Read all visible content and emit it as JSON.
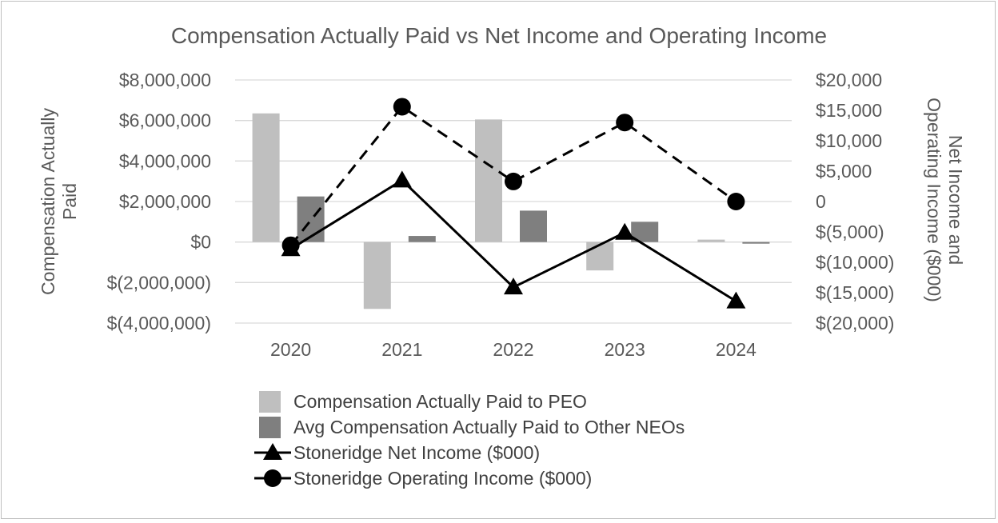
{
  "chart_data": {
    "type": "bar",
    "title": "Compensation Actually Paid vs Net Income and Operating Income",
    "categories": [
      "2020",
      "2021",
      "2022",
      "2023",
      "2024"
    ],
    "y_left": {
      "label_lines": [
        "Compensation Actually",
        "Paid"
      ],
      "range": [
        -4000000,
        8000000
      ],
      "ticks": [
        8000000,
        6000000,
        4000000,
        2000000,
        0,
        -2000000,
        -4000000
      ],
      "tick_labels": [
        "$8,000,000",
        "$6,000,000",
        "$4,000,000",
        "$2,000,000",
        "$0",
        "$(2,000,000)",
        "$(4,000,000)"
      ]
    },
    "y_right": {
      "label_lines": [
        "Net Income and",
        "Operating Income ($000)"
      ],
      "range": [
        -20000,
        20000
      ],
      "ticks": [
        20000,
        15000,
        10000,
        5000,
        0,
        -5000,
        -10000,
        -15000,
        -20000
      ],
      "tick_labels": [
        "$20,000",
        "$15,000",
        "$10,000",
        "$5,000",
        "0",
        "$(5,000)",
        "$(10,000)",
        "$(15,000)",
        "$(20,000)"
      ]
    },
    "grid": true,
    "legend_position": "bottom",
    "series": [
      {
        "name": "Compensation Actually Paid to PEO",
        "kind": "bar",
        "axis": "left",
        "color": "#bfbfbf",
        "values": [
          6350000,
          -3300000,
          6050000,
          -1400000,
          120000
        ]
      },
      {
        "name": "Avg Compensation Actually Paid to Other NEOs",
        "kind": "bar",
        "axis": "left",
        "color": "#7f7f7f",
        "values": [
          2250000,
          300000,
          1550000,
          1000000,
          -80000
        ]
      },
      {
        "name": "Stoneridge Net Income ($000)",
        "kind": "line",
        "axis": "right",
        "color": "#000000",
        "marker": "triangle",
        "dash": "solid",
        "values": [
          -7800,
          3500,
          -14100,
          -5100,
          -16400
        ]
      },
      {
        "name": "Stoneridge Operating Income ($000)",
        "kind": "line",
        "axis": "right",
        "color": "#000000",
        "marker": "circle",
        "dash": "dashed",
        "values": [
          -7200,
          15600,
          3300,
          13000,
          0
        ]
      }
    ]
  }
}
